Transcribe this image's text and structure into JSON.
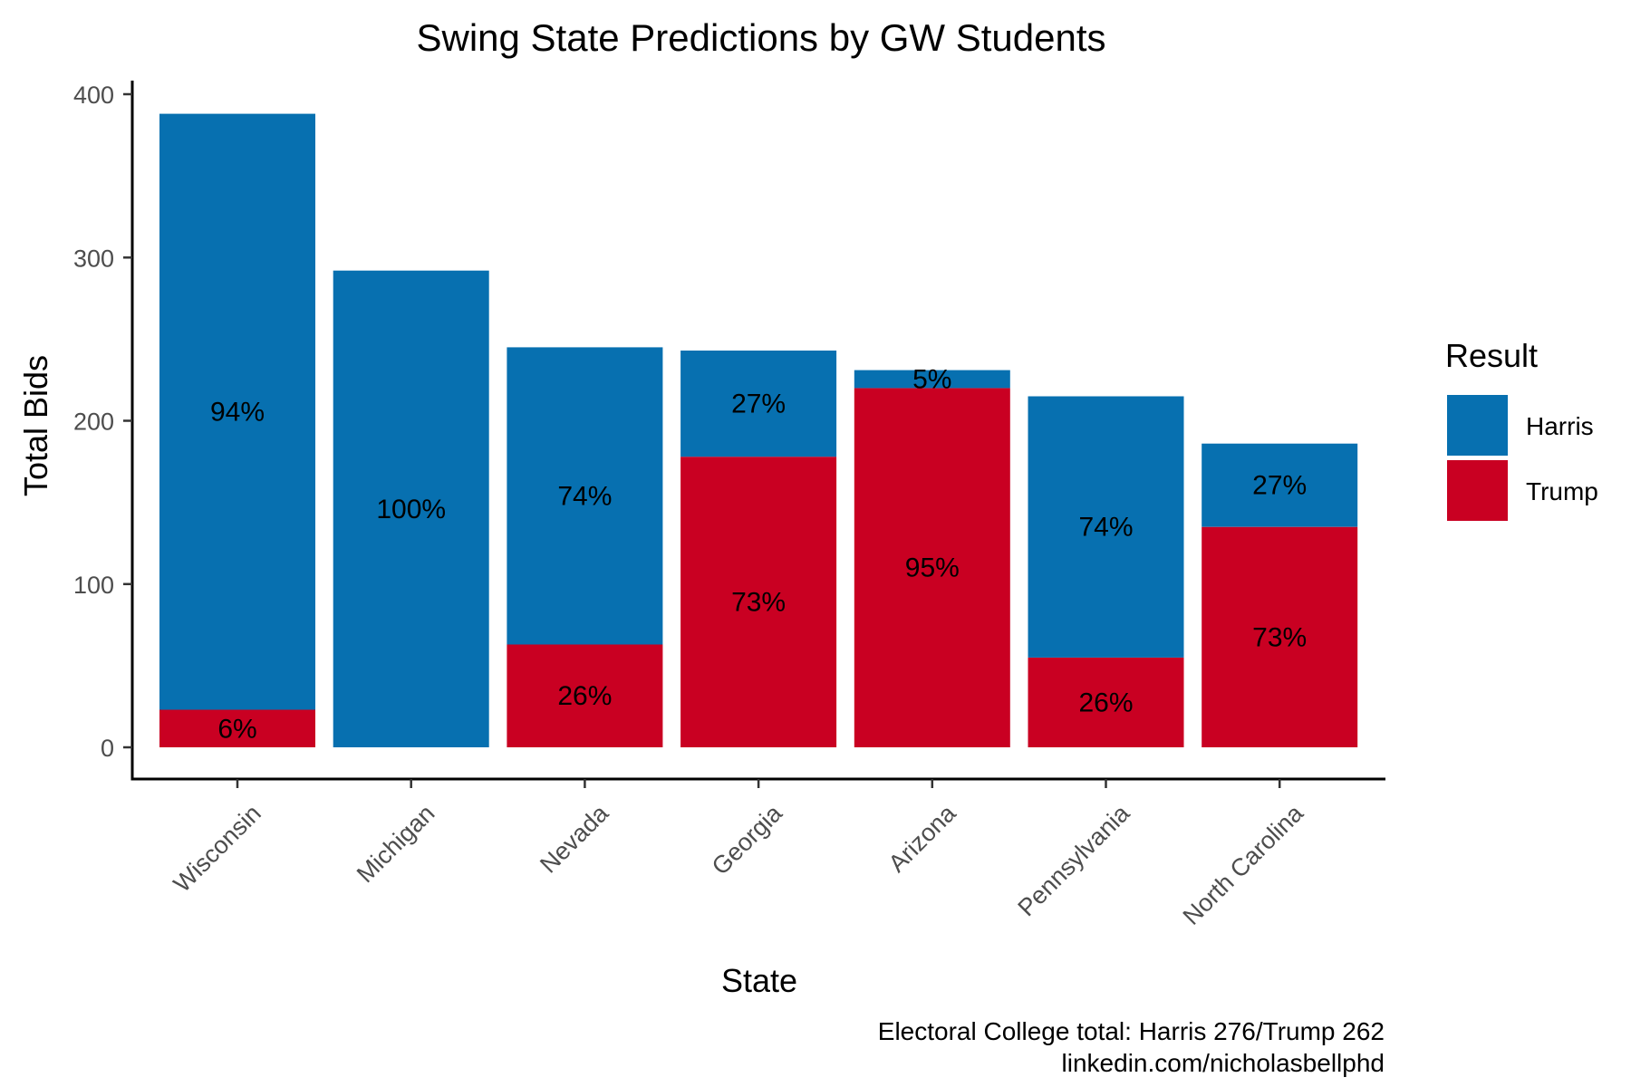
{
  "chart_data": {
    "type": "bar",
    "stacked": true,
    "title": "Swing State Predictions by GW Students",
    "xlabel": "State",
    "ylabel": "Total Bids",
    "ylim": [
      0,
      400
    ],
    "yticks": [
      0,
      100,
      200,
      300,
      400
    ],
    "categories": [
      "Wisconsin",
      "Michigan",
      "Nevada",
      "Georgia",
      "Arizona",
      "Pennsylvania",
      "North Carolina"
    ],
    "series": [
      {
        "name": "Trump",
        "color": "#C90022",
        "values": [
          23,
          0,
          63,
          178,
          220,
          55,
          135
        ],
        "labels": [
          "6%",
          "",
          "26%",
          "73%",
          "95%",
          "26%",
          "73%"
        ]
      },
      {
        "name": "Harris",
        "color": "#0770B0",
        "values": [
          365,
          292,
          182,
          65,
          11,
          160,
          51
        ],
        "labels": [
          "94%",
          "100%",
          "74%",
          "27%",
          "5%",
          "74%",
          "27%"
        ]
      }
    ],
    "legend": {
      "title": "Result",
      "position": "right",
      "entries": [
        {
          "name": "Harris",
          "color": "#0770B0"
        },
        {
          "name": "Trump",
          "color": "#C90022"
        }
      ]
    },
    "grid": false
  },
  "caption": {
    "line1": "Electoral College total: Harris 276/Trump 262",
    "line2": "linkedin.com/nicholasbellphd"
  }
}
